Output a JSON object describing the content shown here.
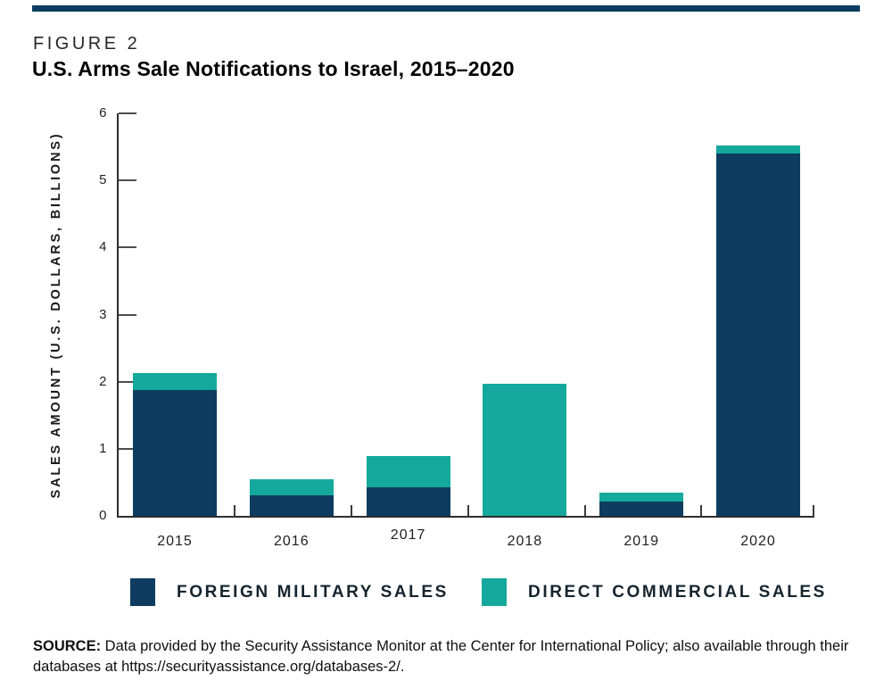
{
  "figure": {
    "label": "FIGURE 2",
    "title": "U.S. Arms Sale Notifications to Israel, 2015–2020"
  },
  "chart_data": {
    "type": "bar",
    "stacked": true,
    "categories": [
      "2015",
      "2016",
      "2017",
      "2018",
      "2019",
      "2020"
    ],
    "series": [
      {
        "name": "Foreign Military Sales",
        "color": "#0d3c60",
        "values": [
          1.88,
          0.3,
          0.43,
          0.0,
          0.21,
          5.4
        ]
      },
      {
        "name": "Direct Commercial Sales",
        "color": "#15a89c",
        "values": [
          0.25,
          0.24,
          0.46,
          1.97,
          0.14,
          0.12
        ]
      }
    ],
    "totals": [
      2.13,
      0.54,
      0.89,
      1.97,
      0.35,
      5.52
    ],
    "title": "U.S. Arms Sale Notifications to Israel, 2015–2020",
    "xlabel": "",
    "ylabel": "SALES AMOUNT (U.S. DOLLARS, BILLIONS)",
    "ylim": [
      0,
      6
    ],
    "yticks": [
      0,
      1,
      2,
      3,
      4,
      5,
      6
    ],
    "grid": false,
    "legend_position": "bottom"
  },
  "legend": {
    "items": [
      {
        "label": "FOREIGN MILITARY SALES",
        "color": "#0d3c60"
      },
      {
        "label": "DIRECT COMMERCIAL SALES",
        "color": "#15a89c"
      }
    ]
  },
  "source": {
    "bold_label": "SOURCE:",
    "text": " Data provided by the Security Assistance Monitor at the Center for International Policy; also available through their databases at https://securityassistance.org/databases-2/."
  },
  "colors": {
    "navy": "#0d3c60",
    "teal": "#15a89c",
    "top_rule": "#0d3c60",
    "axis": "#2e2e2e"
  }
}
